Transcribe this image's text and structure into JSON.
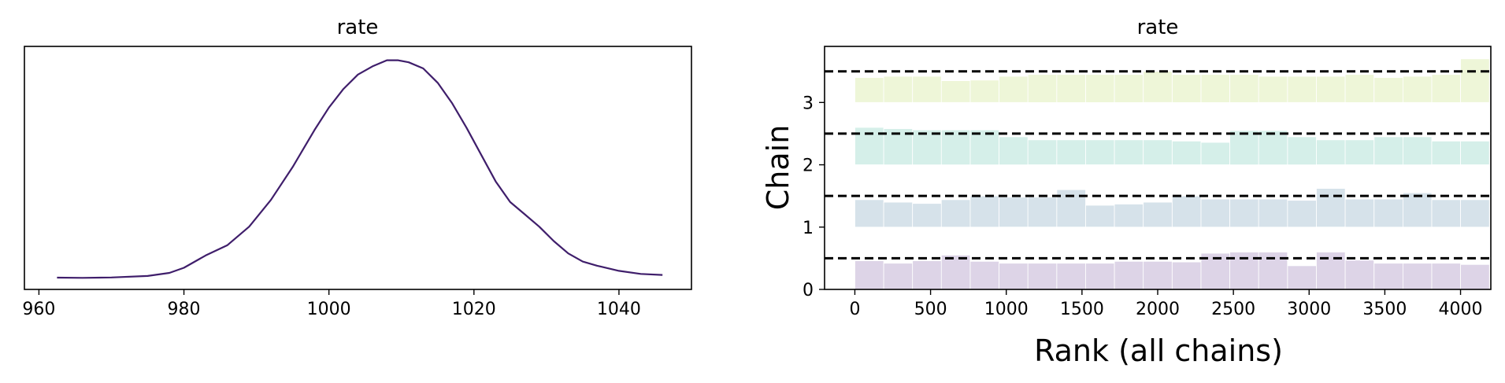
{
  "chart_data": [
    {
      "type": "line",
      "title": "rate",
      "xlabel": "",
      "ylabel": "",
      "xlim": [
        958,
        1050
      ],
      "xticks": [
        960,
        980,
        1000,
        1020,
        1040
      ],
      "y_ticks_shown": false,
      "grid": false,
      "color": "#3f1e6b",
      "series": [
        {
          "x": [
            962.5,
            966,
            970,
            975,
            978,
            980,
            983,
            986,
            989,
            992,
            995,
            998,
            1000,
            1002,
            1004,
            1006,
            1008,
            1009.5,
            1011,
            1013,
            1015,
            1017,
            1019,
            1021,
            1023,
            1025,
            1027,
            1029,
            1031,
            1033,
            1035,
            1037,
            1040,
            1043,
            1046
          ],
          "y": [
            0.042,
            0.041,
            0.043,
            0.05,
            0.065,
            0.09,
            0.15,
            0.2,
            0.29,
            0.42,
            0.58,
            0.76,
            0.87,
            0.96,
            1.03,
            1.07,
            1.1,
            1.1,
            1.09,
            1.06,
            0.99,
            0.89,
            0.77,
            0.64,
            0.51,
            0.41,
            0.35,
            0.29,
            0.22,
            0.16,
            0.12,
            0.1,
            0.075,
            0.06,
            0.055
          ]
        }
      ]
    },
    {
      "type": "bar",
      "title": "rate",
      "xlabel": "Rank (all chains)",
      "ylabel": "Chain",
      "xlim": [
        -200,
        4200
      ],
      "xticks": [
        0,
        500,
        1000,
        1500,
        2000,
        2500,
        3000,
        3500,
        4000
      ],
      "ylim": [
        0,
        3.9
      ],
      "yticks": [
        0,
        1,
        2,
        3
      ],
      "reference_lines": [
        0.5,
        1.5,
        2.5,
        3.5
      ],
      "bin_width": 190.5,
      "series": [
        {
          "name": "0",
          "color": "#ddd4e7",
          "values": [
            0.46,
            0.42,
            0.46,
            0.55,
            0.45,
            0.42,
            0.42,
            0.42,
            0.42,
            0.45,
            0.45,
            0.44,
            0.58,
            0.6,
            0.6,
            0.38,
            0.6,
            0.47,
            0.42,
            0.42,
            0.42,
            0.4
          ]
        },
        {
          "name": "1",
          "color": "#d6e2ea",
          "values": [
            0.44,
            0.4,
            0.38,
            0.44,
            0.5,
            0.48,
            0.48,
            0.6,
            0.35,
            0.37,
            0.4,
            0.5,
            0.45,
            0.45,
            0.45,
            0.43,
            0.62,
            0.45,
            0.45,
            0.55,
            0.44,
            0.44
          ]
        },
        {
          "name": "2",
          "color": "#d5efe9",
          "values": [
            0.6,
            0.58,
            0.56,
            0.56,
            0.56,
            0.45,
            0.4,
            0.4,
            0.4,
            0.4,
            0.4,
            0.38,
            0.36,
            0.55,
            0.55,
            0.45,
            0.4,
            0.4,
            0.45,
            0.45,
            0.38,
            0.38
          ]
        },
        {
          "name": "3",
          "color": "#eef6d8",
          "values": [
            0.4,
            0.42,
            0.42,
            0.35,
            0.36,
            0.42,
            0.45,
            0.45,
            0.45,
            0.45,
            0.5,
            0.45,
            0.45,
            0.45,
            0.42,
            0.42,
            0.42,
            0.45,
            0.4,
            0.42,
            0.45,
            0.7
          ]
        }
      ]
    }
  ]
}
